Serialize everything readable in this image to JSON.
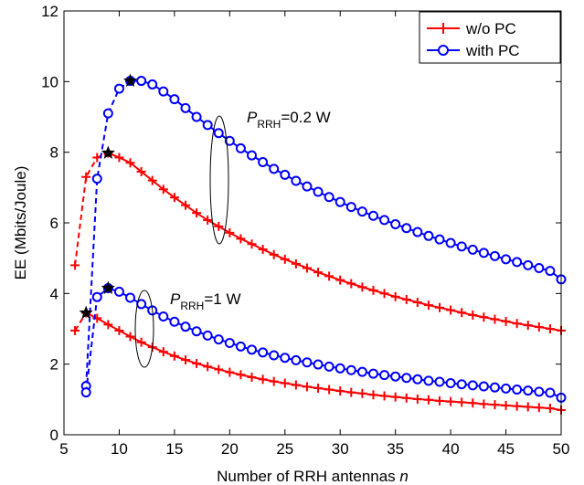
{
  "chart_data": {
    "type": "line",
    "title": "",
    "xlabel": "Number of RRH antennas",
    "xlabel_var": "n",
    "ylabel": "EE (Mbits/Joule)",
    "xlim": [
      5,
      50
    ],
    "ylim": [
      0,
      12
    ],
    "xticks": [
      "5",
      "10",
      "15",
      "20",
      "25",
      "30",
      "35",
      "40",
      "45",
      "50"
    ],
    "yticks": [
      "0",
      "2",
      "4",
      "6",
      "8",
      "10",
      "12"
    ],
    "legend": {
      "position": "top-right",
      "entries": [
        {
          "label": "w/o PC",
          "color": "#ff0000",
          "marker": "plus"
        },
        {
          "label": "with PC",
          "color": "#0000ff",
          "marker": "circle"
        }
      ]
    },
    "annotations": [
      {
        "main": "P",
        "sub": "RRH",
        "suffix": "=0.2 W"
      },
      {
        "main": "P",
        "sub": "RRH",
        "suffix": "=1 W"
      }
    ],
    "series": [
      {
        "name": "w/o PC",
        "group": "P_RRH=0.2 W",
        "color": "#ff0000",
        "marker": "plus",
        "x": [
          6,
          7,
          8,
          9,
          10,
          11,
          12,
          13,
          14,
          15,
          16,
          17,
          18,
          19,
          20,
          21,
          22,
          23,
          24,
          25,
          26,
          27,
          28,
          29,
          30,
          31,
          32,
          33,
          34,
          35,
          36,
          37,
          38,
          39,
          40,
          41,
          42,
          43,
          44,
          45,
          46,
          47,
          48,
          49,
          50
        ],
        "y": [
          4.8,
          7.3,
          7.85,
          7.98,
          7.85,
          7.7,
          7.45,
          7.2,
          6.95,
          6.72,
          6.5,
          6.28,
          6.08,
          5.9,
          5.72,
          5.55,
          5.4,
          5.25,
          5.1,
          4.97,
          4.84,
          4.72,
          4.6,
          4.49,
          4.38,
          4.28,
          4.18,
          4.09,
          4.0,
          3.91,
          3.83,
          3.75,
          3.67,
          3.6,
          3.53,
          3.46,
          3.39,
          3.33,
          3.27,
          3.21,
          3.15,
          3.1,
          3.05,
          3.0,
          2.95
        ]
      },
      {
        "name": "with PC",
        "group": "P_RRH=0.2 W",
        "color": "#0000ff",
        "marker": "circle",
        "x": [
          7,
          8,
          9,
          10,
          11,
          12,
          13,
          14,
          15,
          16,
          17,
          18,
          19,
          20,
          21,
          22,
          23,
          24,
          25,
          26,
          27,
          28,
          29,
          30,
          31,
          32,
          33,
          34,
          35,
          36,
          37,
          38,
          39,
          40,
          41,
          42,
          43,
          44,
          45,
          46,
          47,
          48,
          49,
          50
        ],
        "y": [
          1.38,
          7.25,
          9.1,
          9.8,
          10.02,
          10.02,
          9.92,
          9.72,
          9.5,
          9.25,
          9.0,
          8.77,
          8.54,
          8.32,
          8.11,
          7.91,
          7.72,
          7.53,
          7.36,
          7.19,
          7.03,
          6.88,
          6.73,
          6.59,
          6.45,
          6.32,
          6.2,
          6.08,
          5.96,
          5.85,
          5.74,
          5.63,
          5.53,
          5.43,
          5.33,
          5.24,
          5.15,
          5.06,
          4.97,
          4.89,
          4.8,
          4.72,
          4.64,
          4.4
        ]
      },
      {
        "name": "w/o PC",
        "group": "P_RRH=1 W",
        "color": "#ff0000",
        "marker": "plus",
        "x": [
          6,
          7,
          8,
          9,
          10,
          11,
          12,
          13,
          14,
          15,
          16,
          17,
          18,
          19,
          20,
          21,
          22,
          23,
          24,
          25,
          26,
          27,
          28,
          29,
          30,
          31,
          32,
          33,
          34,
          35,
          36,
          37,
          38,
          39,
          40,
          41,
          42,
          43,
          44,
          45,
          46,
          47,
          48,
          49,
          50
        ],
        "y": [
          2.95,
          3.45,
          3.3,
          3.12,
          2.95,
          2.78,
          2.62,
          2.48,
          2.35,
          2.23,
          2.12,
          2.02,
          1.93,
          1.85,
          1.77,
          1.7,
          1.63,
          1.57,
          1.51,
          1.46,
          1.41,
          1.36,
          1.32,
          1.28,
          1.24,
          1.2,
          1.17,
          1.13,
          1.1,
          1.07,
          1.04,
          1.01,
          0.99,
          0.96,
          0.94,
          0.92,
          0.9,
          0.87,
          0.85,
          0.83,
          0.81,
          0.79,
          0.77,
          0.75,
          0.7
        ]
      },
      {
        "name": "with PC",
        "group": "P_RRH=1 W",
        "color": "#0000ff",
        "marker": "circle",
        "x": [
          7,
          8,
          9,
          10,
          11,
          12,
          13,
          14,
          15,
          16,
          17,
          18,
          19,
          20,
          21,
          22,
          23,
          24,
          25,
          26,
          27,
          28,
          29,
          30,
          31,
          32,
          33,
          34,
          35,
          36,
          37,
          38,
          39,
          40,
          41,
          42,
          43,
          44,
          45,
          46,
          47,
          48,
          49,
          50
        ],
        "y": [
          1.2,
          3.9,
          4.15,
          4.05,
          3.88,
          3.7,
          3.52,
          3.35,
          3.2,
          3.06,
          2.93,
          2.81,
          2.7,
          2.6,
          2.5,
          2.41,
          2.33,
          2.25,
          2.18,
          2.11,
          2.05,
          1.99,
          1.93,
          1.88,
          1.83,
          1.78,
          1.73,
          1.69,
          1.65,
          1.61,
          1.57,
          1.53,
          1.5,
          1.46,
          1.43,
          1.4,
          1.37,
          1.34,
          1.31,
          1.28,
          1.25,
          1.22,
          1.19,
          1.05
        ]
      }
    ],
    "optimal_points": [
      {
        "x": 9,
        "y": 7.98
      },
      {
        "x": 11,
        "y": 10.02
      },
      {
        "x": 7,
        "y": 3.45
      },
      {
        "x": 9,
        "y": 4.15
      }
    ],
    "grid": false
  }
}
